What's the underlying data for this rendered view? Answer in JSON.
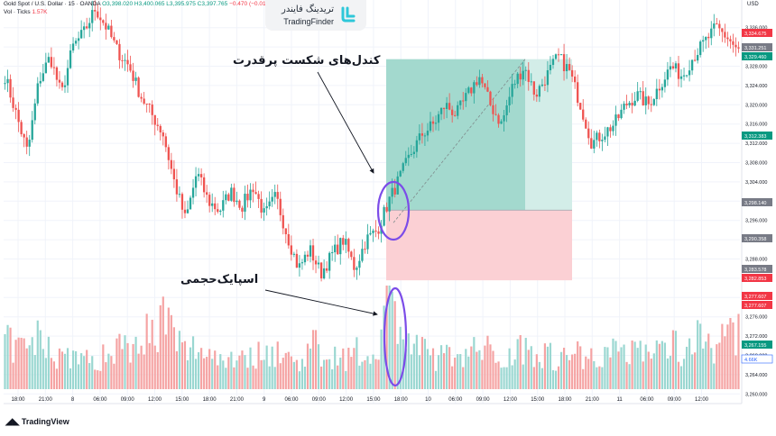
{
  "header": {
    "symbol": "Gold Spot / U.S. Dollar · 15 · OANDA",
    "ohlc": "O3,398.020 H3,400.065 L3,395.975 C3,397.765",
    "change": "−0.470 (−0.01%)",
    "volume_label": "Vol · Ticks",
    "volume_value": "1.57K"
  },
  "logo": {
    "name_fa": "تریدینگ فایندر",
    "name_en": "TradingFinder"
  },
  "footer": {
    "brand": "TradingView"
  },
  "axis": {
    "currency": "USD"
  },
  "annotations": {
    "strong_break": "کندل‌های شکست پرقدرت",
    "volume_spike": "اسپایک‌حجمی"
  },
  "colors": {
    "bull": "#26a69a",
    "bear": "#ef5350",
    "vol_bull": "#9ad7d1",
    "vol_bear": "#f5a3a3",
    "tp_zone": "#a3d9ce",
    "sl_zone": "#fbd0d4",
    "ellipse": "#7b4ce8"
  },
  "chart_data": {
    "type": "candlestick",
    "instrument": "Gold Spot / U.S. Dollar",
    "timeframe": "15",
    "ylim": [
      3258,
      3338
    ],
    "y_ticks": [
      3260,
      3264,
      3268,
      3272,
      3276,
      3280,
      3284,
      3288,
      3292,
      3296,
      3300,
      3304,
      3308,
      3312,
      3316,
      3320,
      3324,
      3328,
      3332,
      3336
    ],
    "x_ticks": [
      "18:00",
      "21:00",
      "8",
      "06:00",
      "09:00",
      "12:00",
      "15:00",
      "18:00",
      "21:00",
      "9",
      "06:00",
      "09:00",
      "12:00",
      "15:00",
      "18:00",
      "10",
      "06:00",
      "09:00",
      "12:00",
      "15:00",
      "18:00",
      "21:00",
      "11",
      "06:00",
      "09:00",
      "12:00"
    ],
    "price_badges": [
      {
        "text": "3,334.675",
        "kind": "bear"
      },
      {
        "text": "3,331.251",
        "kind": "grey"
      },
      {
        "text": "3,329.460",
        "kind": "bull"
      },
      {
        "text": "3,312.383",
        "kind": "bull"
      },
      {
        "text": "3,298.140",
        "kind": "grey"
      },
      {
        "text": "3,290.358",
        "kind": "grey"
      },
      {
        "text": "3,283.578",
        "kind": "grey"
      },
      {
        "text": "3,282.853",
        "kind": "bear"
      },
      {
        "text": "3,277.607",
        "kind": "bear"
      },
      {
        "text": "3,277.607",
        "kind": "bear"
      },
      {
        "text": "3,267.155",
        "kind": "bull"
      },
      {
        "text": "4.66K",
        "kind": "vol"
      }
    ],
    "position": {
      "entry": 3298.14,
      "take_profit": 3329.46,
      "stop_loss": 3283.578
    },
    "price_path": [
      3326,
      3318,
      3310,
      3325,
      3330,
      3322,
      3332,
      3335,
      3340,
      3336,
      3331,
      3328,
      3322,
      3318,
      3314,
      3304,
      3296,
      3306,
      3300,
      3298,
      3302,
      3299,
      3303,
      3297,
      3301,
      3293,
      3286,
      3290,
      3285,
      3289,
      3292,
      3286,
      3292,
      3294,
      3300,
      3305,
      3310,
      3314,
      3316,
      3320,
      3318,
      3322,
      3326,
      3320,
      3316,
      3324,
      3328,
      3322,
      3326,
      3330,
      3327,
      3320,
      3312,
      3314,
      3316,
      3320,
      3322,
      3320,
      3324,
      3328,
      3326,
      3330,
      3333,
      3336,
      3334,
      3331
    ],
    "volume_path": [
      44,
      40,
      38,
      50,
      42,
      30,
      35,
      28,
      26,
      33,
      45,
      40,
      58,
      52,
      70,
      48,
      36,
      40,
      38,
      30,
      32,
      35,
      28,
      40,
      36,
      30,
      26,
      42,
      38,
      34,
      30,
      36,
      28,
      46,
      90,
      60,
      42,
      36,
      32,
      30,
      38,
      34,
      40,
      36,
      30,
      34,
      44,
      38,
      34,
      30,
      32,
      36,
      30,
      38,
      34,
      40,
      42,
      38,
      36,
      44,
      40,
      46,
      50,
      44,
      48,
      52
    ]
  }
}
